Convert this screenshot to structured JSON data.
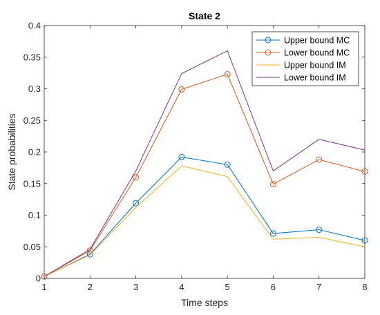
{
  "chart_data": {
    "type": "line",
    "title": "State 2",
    "xlabel": "Time steps",
    "ylabel": "State probabilities",
    "x": [
      1,
      2,
      3,
      4,
      5,
      6,
      7,
      8
    ],
    "xlim": [
      1,
      8
    ],
    "ylim": [
      0,
      0.4
    ],
    "xticks": [
      "1",
      "2",
      "3",
      "4",
      "5",
      "6",
      "7",
      "8"
    ],
    "yticks": [
      "0",
      "0.05",
      "0.1",
      "0.15",
      "0.2",
      "0.25",
      "0.3",
      "0.35",
      "0.4"
    ],
    "grid": false,
    "legend_position": "top-right",
    "series": [
      {
        "name": "Upper bound MC",
        "color": "#0072BD",
        "marker": "circle",
        "values": [
          0.003,
          0.038,
          0.119,
          0.192,
          0.18,
          0.071,
          0.077,
          0.06
        ]
      },
      {
        "name": "Lower bound MC",
        "color": "#D95319",
        "marker": "circle",
        "values": [
          0.003,
          0.044,
          0.16,
          0.299,
          0.323,
          0.149,
          0.188,
          0.169
        ]
      },
      {
        "name": "Upper bound IM",
        "color": "#EDB120",
        "marker": "none",
        "values": [
          0.003,
          0.037,
          0.112,
          0.178,
          0.161,
          0.062,
          0.065,
          0.05
        ]
      },
      {
        "name": "Lower bound IM",
        "color": "#7E2F8E",
        "marker": "none",
        "values": [
          0.003,
          0.046,
          0.17,
          0.324,
          0.36,
          0.17,
          0.22,
          0.203
        ]
      }
    ]
  }
}
